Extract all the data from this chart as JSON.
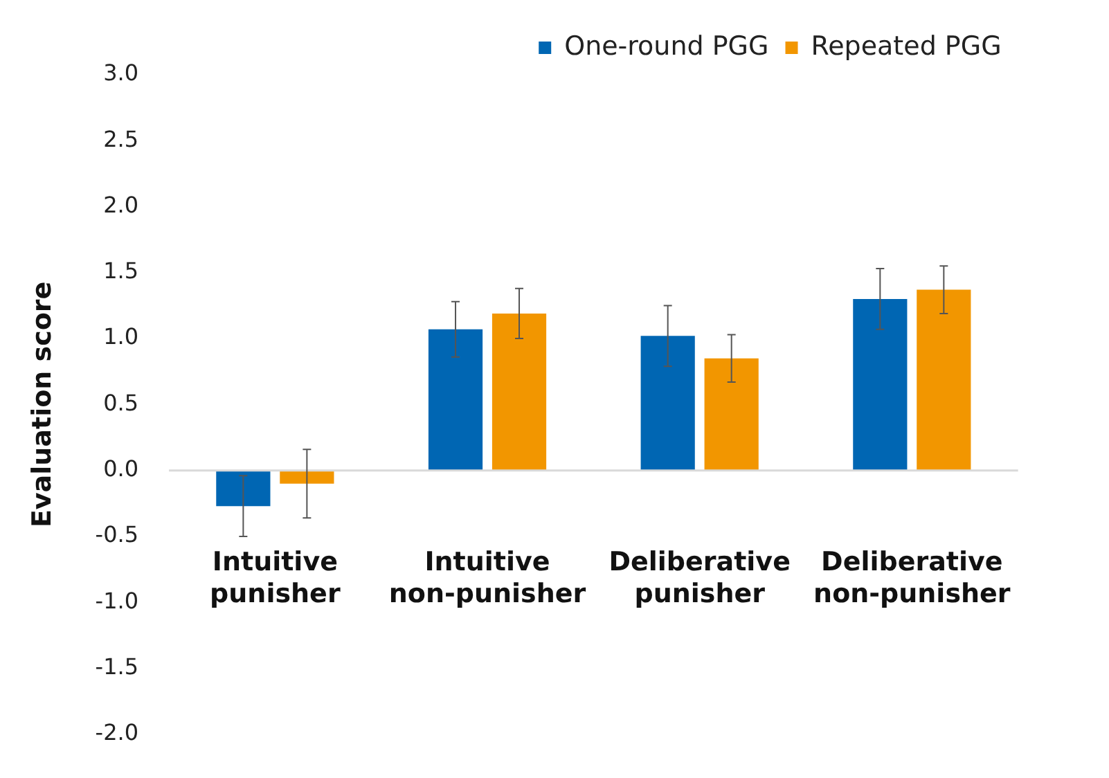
{
  "chart_data": {
    "type": "bar",
    "ylabel": "Evaluation score",
    "categories": [
      "Intuitive punisher",
      "Intuitive non-punisher",
      "Deliberative punisher",
      "Deliberative non-punisher"
    ],
    "series": [
      {
        "name": "One-round PGG",
        "color": "#0066b3",
        "values": [
          -0.27,
          1.07,
          1.02,
          1.3
        ],
        "errors": [
          0.23,
          0.21,
          0.23,
          0.23
        ]
      },
      {
        "name": "Repeated PGG",
        "color": "#f29600",
        "values": [
          -0.1,
          1.19,
          0.85,
          1.37
        ],
        "errors": [
          0.26,
          0.19,
          0.18,
          0.18
        ]
      }
    ],
    "ylim": [
      -2,
      3
    ],
    "yticks": [
      {
        "value": -2,
        "label": "-2.0"
      },
      {
        "value": -1.5,
        "label": "-1.5"
      },
      {
        "value": -1,
        "label": "-1.0"
      },
      {
        "value": -0.5,
        "label": "-0.5"
      },
      {
        "value": 0,
        "label": "0.0"
      },
      {
        "value": 0.5,
        "label": "0.5"
      },
      {
        "value": 1,
        "label": "1.0"
      },
      {
        "value": 1.5,
        "label": "1.5"
      },
      {
        "value": 2,
        "label": "2.0"
      },
      {
        "value": 2.5,
        "label": "2.5"
      },
      {
        "value": 3,
        "label": "3.0"
      }
    ],
    "grid": false,
    "legend": "top right",
    "ref_lines": [
      {
        "axis": "y",
        "value": 0,
        "color": "#d9d9d9"
      }
    ]
  }
}
